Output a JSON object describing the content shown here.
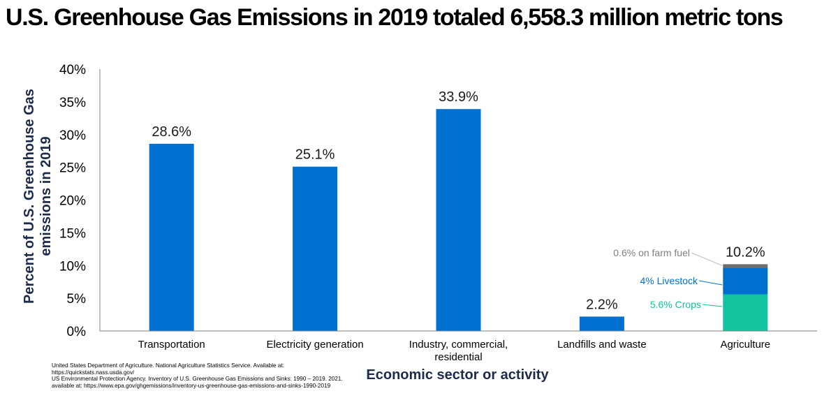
{
  "chart_data": {
    "type": "bar",
    "title": "U.S. Greenhouse Gas Emissions in 2019 totaled 6,558.3 million metric tons",
    "ylabel": [
      "Percent of U.S. Greenhouse Gas",
      "emissions in 2019"
    ],
    "xlabel": "Economic sector or activity",
    "ylim": [
      0,
      40
    ],
    "yticks": [
      "0%",
      "5%",
      "10%",
      "15%",
      "20%",
      "25%",
      "30%",
      "35%",
      "40%"
    ],
    "categories": [
      [
        "Transportation"
      ],
      [
        "Electricity generation"
      ],
      [
        "Industry, commercial,",
        "residential"
      ],
      [
        "Landfills and waste"
      ],
      [
        "Agriculture"
      ]
    ],
    "values": [
      28.6,
      25.1,
      33.9,
      2.2,
      10.2
    ],
    "labels": [
      "28.6%",
      "25.1%",
      "33.9%",
      "2.2%",
      "10.2%"
    ],
    "stacked": {
      "category_index": 4,
      "segments": [
        {
          "label": "5.6% Crops",
          "value": 5.6,
          "color": "#12c3a0"
        },
        {
          "label": "4% Livestock",
          "value": 4.0,
          "color": "#0070d0"
        },
        {
          "label": "0.6% on farm fuel",
          "value": 0.6,
          "color": "#6d6d6d"
        }
      ]
    },
    "bar_color": "#0070d0",
    "grid": false
  },
  "sources": [
    "United States Department of Agriculture. National Agriculture Statistics Service. Available at: https://quickstats.nass.usda.gov/",
    "US Environmental Protection Agency. Inventory of U.S. Greenhouse Gas Emissions and Sinks: 1990 – 2019. 2021. available at: https://www.epa.gov/ghgemissions/inventory-us-greenhouse-gas-emissions-and-sinks-1990-2019"
  ]
}
